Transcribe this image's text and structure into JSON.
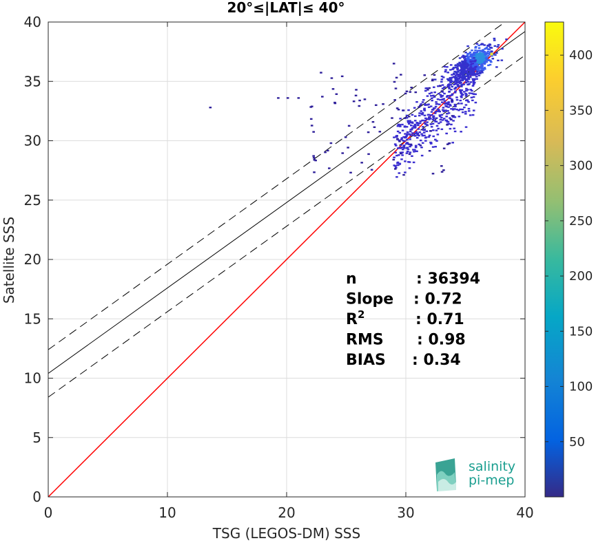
{
  "chart_data": {
    "type": "heatmap",
    "title": "20°≤|LAT|≤ 40°",
    "xlabel": "TSG (LEGOS-DM) SSS",
    "ylabel": "Satellite SSS",
    "xlim": [
      0,
      40
    ],
    "ylim": [
      0,
      40
    ],
    "xticks": [
      "0",
      "10",
      "20",
      "30",
      "40"
    ],
    "yticks": [
      "0",
      "5",
      "10",
      "15",
      "20",
      "25",
      "30",
      "35",
      "40"
    ],
    "grid": true,
    "colorbar": {
      "colormap": "parula",
      "range": [
        0,
        430
      ],
      "ticks": [
        "50",
        "100",
        "150",
        "200",
        "250",
        "300",
        "350",
        "400"
      ]
    },
    "lines": {
      "identity": {
        "slope": 1,
        "intercept": 0,
        "color": "#ff0000"
      },
      "regression": {
        "slope": 0.72,
        "intercept": 10.4,
        "color": "#000000",
        "style": "solid"
      },
      "upper_bound": {
        "slope": 0.72,
        "intercept": 12.4,
        "color": "#000000",
        "style": "dashed"
      },
      "lower_bound": {
        "slope": 0.72,
        "intercept": 8.4,
        "color": "#000000",
        "style": "dashed"
      }
    },
    "stats": [
      {
        "label": "n",
        "value": ": 36394"
      },
      {
        "label": "Slope",
        "value": ": 0.72"
      },
      {
        "label": "R",
        "sup": "2",
        "value": ": 0.71"
      },
      {
        "label": "RMS",
        "value": ": 0.98"
      },
      {
        "label": "BIAS",
        "value": ": 0.34"
      }
    ]
  },
  "logo": {
    "line1": "salinity",
    "line2": "pi-mep"
  }
}
